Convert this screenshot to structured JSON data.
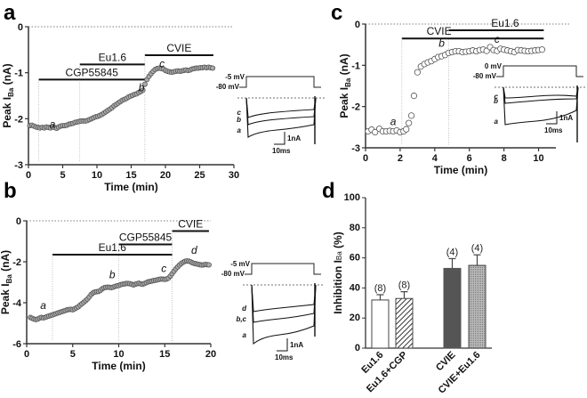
{
  "chart_data": [
    {
      "panel": "a",
      "type": "scatter",
      "xlabel": "Time (min)",
      "ylabel": "Peak I_Ba (nA)",
      "ylabel_main": "Peak I",
      "ylabel_sub": "Ba",
      "ylabel_unit": " (nA)",
      "xlim": [
        0,
        30
      ],
      "ylim": [
        -3,
        0
      ],
      "xticks": [
        0,
        5,
        10,
        15,
        20,
        25,
        30
      ],
      "yticks": [
        0,
        -1,
        -2,
        -3
      ],
      "reference_line": 0,
      "drug_bars": [
        {
          "label": "CGP55845",
          "start": 1.5,
          "end": 17.0,
          "y": -1.15
        },
        {
          "label": "Eu1.6",
          "start": 7.5,
          "end": 17.0,
          "y": -0.82
        },
        {
          "label": "CVIE",
          "start": 17.0,
          "end": 27.0,
          "y": -0.62
        }
      ],
      "point_labels": [
        {
          "label": "a",
          "x": 3.5,
          "y": -2.2
        },
        {
          "label": "b",
          "x": 16.5,
          "y": -1.4
        },
        {
          "label": "c",
          "x": 19.5,
          "y": -0.88
        }
      ],
      "series": {
        "x": [
          0.2,
          0.5,
          0.8,
          1.1,
          1.4,
          1.7,
          2.0,
          2.3,
          2.6,
          2.9,
          3.2,
          3.5,
          3.8,
          4.1,
          4.4,
          4.7,
          5.0,
          5.3,
          5.6,
          5.9,
          6.2,
          6.5,
          6.8,
          7.1,
          7.4,
          7.7,
          8.0,
          8.3,
          8.6,
          8.9,
          9.2,
          9.5,
          9.8,
          10.1,
          10.4,
          10.7,
          11.0,
          11.3,
          11.6,
          11.9,
          12.2,
          12.5,
          12.8,
          13.1,
          13.4,
          13.7,
          14.0,
          14.3,
          14.6,
          14.9,
          15.2,
          15.5,
          15.8,
          16.1,
          16.4,
          16.7,
          17.0,
          17.3,
          17.6,
          17.9,
          18.2,
          18.5,
          18.8,
          19.1,
          19.4,
          19.7,
          20.0,
          20.3,
          20.6,
          20.9,
          21.2,
          21.5,
          21.8,
          22.1,
          22.4,
          22.7,
          23.0,
          23.3,
          23.6,
          23.9,
          24.2,
          24.5,
          24.8,
          25.1,
          25.4,
          25.7,
          26.0,
          26.3,
          26.6,
          26.9
        ],
        "y": [
          -2.15,
          -2.14,
          -2.16,
          -2.18,
          -2.19,
          -2.2,
          -2.19,
          -2.2,
          -2.18,
          -2.19,
          -2.2,
          -2.18,
          -2.19,
          -2.21,
          -2.18,
          -2.16,
          -2.15,
          -2.15,
          -2.14,
          -2.12,
          -2.11,
          -2.1,
          -2.08,
          -2.07,
          -2.06,
          -2.05,
          -2.05,
          -2.05,
          -2.04,
          -2.02,
          -2.0,
          -1.98,
          -1.96,
          -1.95,
          -1.93,
          -1.91,
          -1.88,
          -1.85,
          -1.82,
          -1.79,
          -1.76,
          -1.72,
          -1.69,
          -1.66,
          -1.63,
          -1.6,
          -1.58,
          -1.56,
          -1.53,
          -1.51,
          -1.49,
          -1.47,
          -1.46,
          -1.43,
          -1.41,
          -1.38,
          -1.25,
          -1.15,
          -1.08,
          -1.02,
          -0.97,
          -0.93,
          -0.91,
          -0.9,
          -0.91,
          -0.92,
          -0.95,
          -0.97,
          -0.98,
          -0.99,
          -0.98,
          -0.97,
          -0.96,
          -0.97,
          -0.96,
          -0.95,
          -0.94,
          -0.95,
          -0.94,
          -0.92,
          -0.91,
          -0.9,
          -0.9,
          -0.89,
          -0.89,
          -0.88,
          -0.89,
          -0.88,
          -0.89,
          -0.9
        ]
      },
      "inset": {
        "protocol_labels": [
          "-5 mV",
          "-80 mV"
        ],
        "trace_labels": [
          "c",
          "b",
          "a"
        ],
        "scale_bar": {
          "current": "1nA",
          "time": "10ms"
        }
      }
    },
    {
      "panel": "b",
      "type": "scatter",
      "xlabel": "Time (min)",
      "ylabel": "Peak I_Ba (nA)",
      "ylabel_main": "Peak I",
      "ylabel_sub": "Ba",
      "ylabel_unit": " (nA)",
      "xlim": [
        0,
        20
      ],
      "ylim": [
        -6,
        0
      ],
      "xticks": [
        0,
        5,
        10,
        15,
        20
      ],
      "yticks": [
        0,
        -2,
        -4,
        -6
      ],
      "reference_line": 0,
      "drug_bars": [
        {
          "label": "Eu1.6",
          "start": 2.8,
          "end": 15.8,
          "y": -1.65
        },
        {
          "label": "CGP55845",
          "start": 10.0,
          "end": 15.8,
          "y": -1.15
        },
        {
          "label": "CVIE",
          "start": 15.8,
          "end": 19.8,
          "y": -0.5
        }
      ],
      "point_labels": [
        {
          "label": "a",
          "x": 1.8,
          "y": -4.3
        },
        {
          "label": "b",
          "x": 9.3,
          "y": -2.8
        },
        {
          "label": "c",
          "x": 14.9,
          "y": -2.5
        },
        {
          "label": "d",
          "x": 18.2,
          "y": -1.6
        }
      ],
      "series": {
        "x": [
          0.4,
          0.6,
          0.8,
          1.0,
          1.2,
          1.4,
          1.6,
          1.8,
          2.0,
          2.2,
          2.4,
          2.6,
          2.8,
          3.0,
          3.2,
          3.4,
          3.6,
          3.8,
          4.0,
          4.2,
          4.4,
          4.6,
          4.8,
          5.0,
          5.2,
          5.4,
          5.6,
          5.8,
          6.0,
          6.2,
          6.4,
          6.6,
          6.8,
          7.0,
          7.2,
          7.4,
          7.6,
          7.8,
          8.0,
          8.2,
          8.4,
          8.6,
          8.8,
          9.0,
          9.2,
          9.4,
          9.6,
          9.8,
          10.0,
          10.2,
          10.4,
          10.6,
          10.8,
          11.0,
          11.2,
          11.4,
          11.6,
          11.8,
          12.0,
          12.2,
          12.4,
          12.6,
          12.8,
          13.0,
          13.2,
          13.4,
          13.6,
          13.8,
          14.0,
          14.2,
          14.4,
          14.6,
          14.8,
          15.0,
          15.2,
          15.4,
          15.6,
          15.8,
          16.0,
          16.2,
          16.4,
          16.6,
          16.8,
          17.0,
          17.2,
          17.4,
          17.6,
          17.8,
          18.0,
          18.2,
          18.4,
          18.6,
          18.8,
          19.0,
          19.2,
          19.4,
          19.6,
          19.8
        ],
        "y": [
          -4.72,
          -4.76,
          -4.8,
          -4.82,
          -4.8,
          -4.75,
          -4.72,
          -4.74,
          -4.72,
          -4.68,
          -4.65,
          -4.62,
          -4.6,
          -4.56,
          -4.53,
          -4.5,
          -4.47,
          -4.44,
          -4.41,
          -4.38,
          -4.35,
          -4.33,
          -4.32,
          -4.34,
          -4.3,
          -4.25,
          -4.2,
          -4.12,
          -4.05,
          -3.98,
          -3.9,
          -3.82,
          -3.72,
          -3.6,
          -3.52,
          -3.48,
          -3.46,
          -3.45,
          -3.4,
          -3.32,
          -3.27,
          -3.25,
          -3.24,
          -3.25,
          -3.26,
          -3.24,
          -3.2,
          -3.18,
          -3.16,
          -3.12,
          -3.1,
          -3.08,
          -3.06,
          -3.06,
          -3.07,
          -3.1,
          -3.13,
          -3.1,
          -3.07,
          -3.05,
          -3.08,
          -3.1,
          -3.06,
          -3.02,
          -2.98,
          -2.96,
          -2.94,
          -2.92,
          -2.9,
          -2.88,
          -2.86,
          -2.84,
          -2.85,
          -2.86,
          -2.84,
          -2.8,
          -2.7,
          -2.58,
          -2.46,
          -2.35,
          -2.25,
          -2.16,
          -2.08,
          -2.02,
          -1.98,
          -1.96,
          -1.97,
          -2.0,
          -2.05,
          -2.08,
          -2.1,
          -2.12,
          -2.14,
          -2.16,
          -2.15,
          -2.13,
          -2.14,
          -2.15
        ]
      },
      "inset": {
        "protocol_labels": [
          "-5 mV",
          "-80 mV"
        ],
        "trace_labels": [
          "d",
          "b,c",
          "a"
        ],
        "scale_bar": {
          "current": "1nA",
          "time": "10ms"
        }
      }
    },
    {
      "panel": "c",
      "type": "scatter",
      "xlabel": "Time (min)",
      "ylabel": "Peak I_Ba (nA)",
      "ylabel_main": "Peak I",
      "ylabel_sub": "Ba",
      "ylabel_unit": " (nA)",
      "xlim": [
        0,
        11
      ],
      "ylim": [
        -3,
        0
      ],
      "xticks": [
        0,
        2,
        4,
        6,
        8,
        10
      ],
      "yticks": [
        0,
        -1,
        -2,
        -3
      ],
      "reference_line": 0,
      "drug_bars": [
        {
          "label": "CVIE",
          "start": 2.1,
          "end": 10.3,
          "y": -0.35
        },
        {
          "label": "Eu1.6",
          "start": 4.8,
          "end": 10.3,
          "y": -0.15
        }
      ],
      "point_labels": [
        {
          "label": "a",
          "x": 1.6,
          "y": -2.45
        },
        {
          "label": "b",
          "x": 4.4,
          "y": -0.55
        },
        {
          "label": "c",
          "x": 7.6,
          "y": -0.45
        }
      ],
      "series": {
        "x": [
          0.15,
          0.35,
          0.55,
          0.8,
          1.0,
          1.2,
          1.4,
          1.6,
          1.8,
          2.0,
          2.2,
          2.35,
          2.5,
          2.65,
          2.8,
          3.0,
          3.2,
          3.4,
          3.6,
          3.8,
          4.0,
          4.2,
          4.4,
          4.6,
          4.8,
          5.0,
          5.2,
          5.4,
          5.6,
          5.8,
          6.0,
          6.2,
          6.4,
          6.6,
          6.8,
          7.0,
          7.2,
          7.4,
          7.6,
          7.8,
          8.0,
          8.2,
          8.4,
          8.6,
          8.8,
          9.0,
          9.2,
          9.4,
          9.6,
          9.8,
          10.0,
          10.2
        ],
        "y": [
          -2.6,
          -2.56,
          -2.62,
          -2.54,
          -2.6,
          -2.6,
          -2.59,
          -2.6,
          -2.58,
          -2.62,
          -2.6,
          -2.55,
          -2.4,
          -2.22,
          -1.74,
          -1.17,
          -1.03,
          -0.97,
          -0.93,
          -0.9,
          -0.85,
          -0.8,
          -0.78,
          -0.75,
          -0.7,
          -0.68,
          -0.66,
          -0.66,
          -0.68,
          -0.67,
          -0.66,
          -0.64,
          -0.66,
          -0.63,
          -0.62,
          -0.65,
          -0.56,
          -0.63,
          -0.65,
          -0.6,
          -0.62,
          -0.64,
          -0.66,
          -0.68,
          -0.63,
          -0.64,
          -0.65,
          -0.66,
          -0.65,
          -0.64,
          -0.63,
          -0.62
        ]
      },
      "inset": {
        "protocol_labels": [
          "0 mV",
          "-80 mV"
        ],
        "trace_labels": [
          "c",
          "b",
          "a"
        ],
        "scale_bar": {
          "current": "1nA",
          "time": "10ms"
        }
      }
    },
    {
      "panel": "d",
      "type": "bar",
      "ylabel": "Inhibition I_Ba (%)",
      "ylabel_main": "Inhibition I",
      "ylabel_sub": "Ba",
      "ylabel_unit": " (%)",
      "ylim": [
        0,
        100
      ],
      "yticks": [
        0,
        20,
        40,
        60,
        80,
        100
      ],
      "categories": [
        "Eu1.6",
        "Eu1.6+CGP",
        "CVIE",
        "CVIE+Eu1.6"
      ],
      "values": [
        32,
        33,
        53,
        55
      ],
      "errors": [
        3.5,
        4.5,
        6.5,
        7
      ],
      "n_labels": [
        "(8)",
        "(8)",
        "(4)",
        "(4)"
      ],
      "fills": [
        "#ffffff",
        "hatch",
        "#555555",
        "#a8a8a8"
      ]
    }
  ],
  "panel_letters": [
    "a",
    "b",
    "c",
    "d"
  ]
}
